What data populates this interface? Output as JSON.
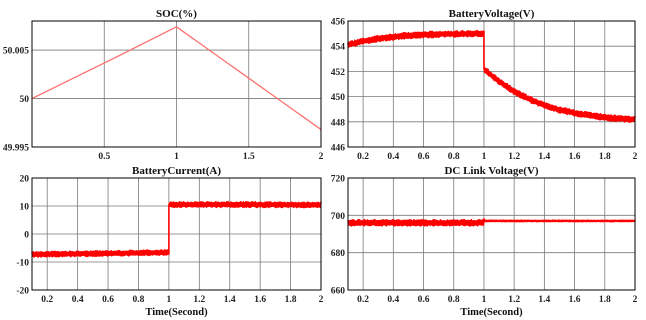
{
  "chart_data": [
    {
      "type": "line",
      "title": "SOC(%)",
      "xlabel": "",
      "ylabel": "",
      "xlim": [
        0,
        2
      ],
      "ylim": [
        49.995,
        50.008
      ],
      "xticks": [
        0.5,
        1,
        1.5,
        2
      ],
      "xtick_labels": [
        "0.5",
        "1",
        "1.5",
        "2"
      ],
      "yticks": [
        49.995,
        50,
        50.005
      ],
      "ytick_labels": [
        "49.995",
        "50",
        "50.005"
      ],
      "grid": true,
      "series": [
        {
          "x": [
            0,
            0.6,
            1,
            1.5,
            2
          ],
          "y": [
            50.0,
            50.0044,
            50.0074,
            50.0021,
            49.9968
          ],
          "color": "#ff7070",
          "noise": 0
        }
      ]
    },
    {
      "type": "line",
      "title": "BatteryVoltage(V)",
      "xlabel": "",
      "ylabel": "",
      "xlim": [
        0.1,
        2
      ],
      "ylim": [
        446,
        456
      ],
      "xticks": [
        0.2,
        0.4,
        0.6,
        0.8,
        1,
        1.2,
        1.4,
        1.6,
        1.8,
        2
      ],
      "xtick_labels": [
        "0.2",
        "0.4",
        "0.6",
        "0.8",
        "1",
        "1.2",
        "1.4",
        "1.6",
        "1.8",
        "2"
      ],
      "yticks": [
        446,
        448,
        450,
        452,
        454,
        456
      ],
      "ytick_labels": [
        "446",
        "448",
        "450",
        "452",
        "454",
        "456"
      ],
      "grid": true,
      "series": [
        {
          "x": [
            0.1,
            0.2,
            0.3,
            0.4,
            0.5,
            0.6,
            0.7,
            0.8,
            0.9,
            1.0,
            1.0,
            1.05,
            1.1,
            1.2,
            1.3,
            1.4,
            1.5,
            1.6,
            1.7,
            1.8,
            1.9,
            2.0
          ],
          "y": [
            454.1,
            454.4,
            454.6,
            454.75,
            454.85,
            454.9,
            454.95,
            454.97,
            454.98,
            455.0,
            452.2,
            451.7,
            451.2,
            450.4,
            449.8,
            449.3,
            448.95,
            448.7,
            448.5,
            448.35,
            448.25,
            448.2
          ],
          "color": "#ff0000",
          "noise": 0.25
        }
      ]
    },
    {
      "type": "line",
      "title": "BatteryCurrent(A)",
      "xlabel": "Time(Second)",
      "ylabel": "",
      "xlim": [
        0.1,
        2
      ],
      "ylim": [
        -20,
        20
      ],
      "xticks": [
        0.2,
        0.4,
        0.6,
        0.8,
        1,
        1.2,
        1.4,
        1.6,
        1.8,
        2
      ],
      "xtick_labels": [
        "0.2",
        "0.4",
        "0.6",
        "0.8",
        "1",
        "1.2",
        "1.4",
        "1.6",
        "1.8",
        "2"
      ],
      "yticks": [
        -20,
        -10,
        0,
        10,
        20
      ],
      "ytick_labels": [
        "-20",
        "-10",
        "0",
        "10",
        "20"
      ],
      "grid": true,
      "series": [
        {
          "x": [
            0.1,
            0.5,
            0.99,
            1.0,
            1.0,
            1.5,
            2.0
          ],
          "y": [
            -7.3,
            -7.0,
            -6.6,
            -6.6,
            10.5,
            10.5,
            10.4
          ],
          "color": "#ff0000",
          "noise": 1.0
        }
      ]
    },
    {
      "type": "line",
      "title": "DC Link Voltage(V)",
      "xlabel": "Time(Second)",
      "ylabel": "",
      "xlim": [
        0.1,
        2
      ],
      "ylim": [
        660,
        720
      ],
      "xticks": [
        0.2,
        0.4,
        0.6,
        0.8,
        1,
        1.2,
        1.4,
        1.6,
        1.8,
        2
      ],
      "xtick_labels": [
        "0.2",
        "0.4",
        "0.6",
        "0.8",
        "1",
        "1.2",
        "1.4",
        "1.6",
        "1.8",
        "2"
      ],
      "yticks": [
        660,
        680,
        700,
        720
      ],
      "ytick_labels": [
        "660",
        "680",
        "700",
        "720"
      ],
      "grid": true,
      "series": [
        {
          "x": [
            0.1,
            1.0,
            1.0,
            2.0
          ],
          "y": [
            696.0,
            696.0,
            697.0,
            697.0
          ],
          "color": "#ff0000",
          "noise": 1.7,
          "noise_after": 0.4
        }
      ]
    }
  ]
}
